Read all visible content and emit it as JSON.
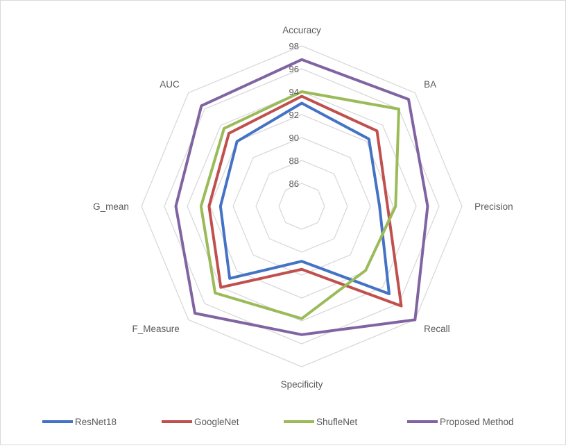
{
  "chart_data": {
    "type": "radar",
    "axes": [
      "Accuracy",
      "BA",
      "Precision",
      "Recall",
      "Specificity",
      "F_Measure",
      "G_mean",
      "AUC"
    ],
    "ticks": [
      86,
      88,
      90,
      92,
      94,
      96,
      98
    ],
    "rlim": [
      84,
      98
    ],
    "grid": true,
    "legend_position": "bottom",
    "series": [
      {
        "name": "ResNet18",
        "color": "#4472c4",
        "values": [
          93.0,
          92.3,
          90.8,
          94.8,
          88.8,
          92.9,
          91.1,
          92.0
        ]
      },
      {
        "name": "GoogleNet",
        "color": "#c0504d",
        "values": [
          93.6,
          93.3,
          91.5,
          96.3,
          89.5,
          94.0,
          92.1,
          93.0
        ]
      },
      {
        "name": "ShufleNet",
        "color": "#9bbb59",
        "values": [
          94.0,
          96.0,
          92.2,
          91.9,
          93.8,
          94.7,
          92.8,
          93.6
        ]
      },
      {
        "name": "Proposed Method",
        "color": "#8064a2",
        "values": [
          96.8,
          97.2,
          95.0,
          98.0,
          95.2,
          97.2,
          95.0,
          96.4
        ]
      }
    ]
  }
}
